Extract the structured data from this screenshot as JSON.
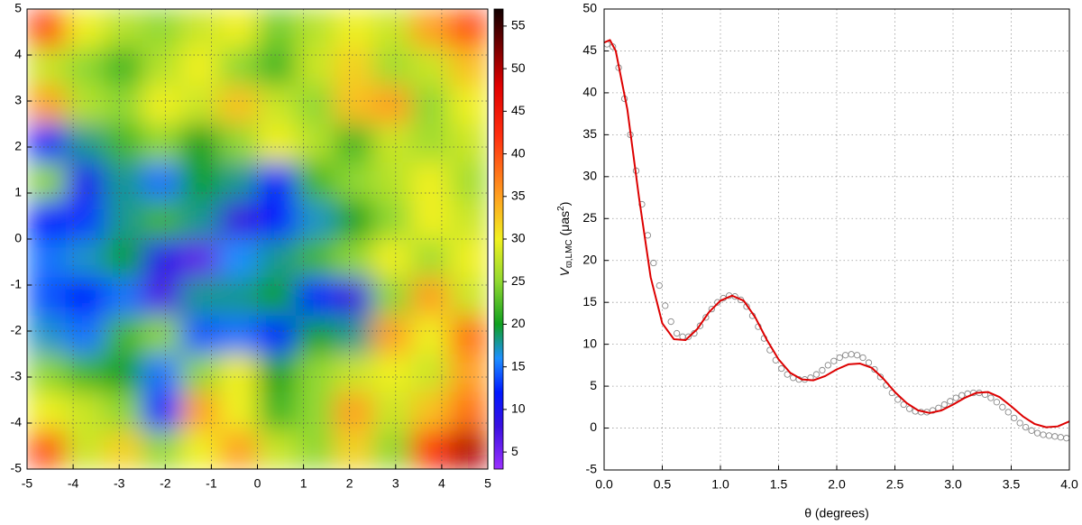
{
  "chart_data": [
    {
      "type": "heatmap",
      "xlim": [
        -5,
        5
      ],
      "ylim": [
        -5,
        5
      ],
      "xticks": [
        -5,
        -4,
        -3,
        -2,
        -1,
        0,
        1,
        2,
        3,
        4,
        5
      ],
      "yticks": [
        -5,
        -4,
        -3,
        -2,
        -1,
        0,
        1,
        2,
        3,
        4,
        5
      ],
      "grid": true,
      "zlim": [
        3,
        57
      ],
      "zticks": [
        5,
        10,
        15,
        20,
        25,
        30,
        35,
        40,
        45,
        50,
        55
      ],
      "colorscale": [
        [
          3,
          "#9b30ff"
        ],
        [
          8,
          "#3a10e0"
        ],
        [
          12,
          "#0018ff"
        ],
        [
          16,
          "#1e90ff"
        ],
        [
          20,
          "#10a020"
        ],
        [
          25,
          "#90d830"
        ],
        [
          30,
          "#f0f020"
        ],
        [
          35,
          "#ffa020"
        ],
        [
          42,
          "#ff3010"
        ],
        [
          48,
          "#e00000"
        ],
        [
          57,
          "#100000"
        ]
      ],
      "z": [
        [
          40,
          30,
          27,
          25,
          28,
          30,
          24,
          27,
          30,
          28,
          35,
          40
        ],
        [
          28,
          25,
          22,
          27,
          30,
          25,
          22,
          28,
          32,
          26,
          28,
          33
        ],
        [
          35,
          27,
          25,
          30,
          28,
          33,
          28,
          25,
          33,
          35,
          25,
          30
        ],
        [
          12,
          18,
          22,
          25,
          20,
          25,
          30,
          27,
          22,
          28,
          26,
          28
        ],
        [
          25,
          10,
          18,
          15,
          20,
          18,
          12,
          22,
          25,
          27,
          30,
          26
        ],
        [
          12,
          13,
          18,
          22,
          18,
          8,
          12,
          17,
          20,
          25,
          30,
          28
        ],
        [
          15,
          17,
          20,
          9,
          6,
          16,
          18,
          22,
          25,
          30,
          26,
          30
        ],
        [
          14,
          12,
          15,
          7,
          18,
          18,
          20,
          12,
          8,
          25,
          35,
          28
        ],
        [
          17,
          15,
          22,
          25,
          14,
          15,
          12,
          20,
          18,
          35,
          30,
          38
        ],
        [
          25,
          22,
          20,
          15,
          25,
          30,
          20,
          25,
          28,
          30,
          28,
          35
        ],
        [
          30,
          28,
          25,
          12,
          35,
          30,
          22,
          25,
          35,
          28,
          33,
          38
        ],
        [
          40,
          28,
          32,
          25,
          30,
          35,
          28,
          25,
          32,
          25,
          42,
          50
        ]
      ]
    },
    {
      "type": "line",
      "xlabel": "θ (degrees)",
      "ylabel": {
        "main": "V",
        "sub": "ϖ,LMC",
        "unit": "(μas",
        "sup": "2",
        "end": ")"
      },
      "xlim": [
        0,
        4
      ],
      "ylim": [
        -5,
        50
      ],
      "xticks": [
        {
          "value": 0,
          "label": "0.0"
        },
        {
          "value": 0.5,
          "label": "0.5"
        },
        {
          "value": 1,
          "label": "1.0"
        },
        {
          "value": 1.5,
          "label": "1.5"
        },
        {
          "value": 2,
          "label": "2.0"
        },
        {
          "value": 2.5,
          "label": "2.5"
        },
        {
          "value": 3,
          "label": "3.0"
        },
        {
          "value": 3.5,
          "label": "3.5"
        },
        {
          "value": 4,
          "label": "4.0"
        }
      ],
      "yticks": [
        -5,
        0,
        5,
        10,
        15,
        20,
        25,
        30,
        35,
        40,
        45,
        50
      ],
      "grid": true,
      "series": [
        {
          "type": "scatter",
          "color": "#888888",
          "x": [
            0.025,
            0.075,
            0.125,
            0.175,
            0.225,
            0.275,
            0.325,
            0.375,
            0.425,
            0.475,
            0.525,
            0.575,
            0.625,
            0.675,
            0.725,
            0.775,
            0.825,
            0.875,
            0.925,
            0.975,
            1.025,
            1.075,
            1.125,
            1.175,
            1.225,
            1.275,
            1.325,
            1.375,
            1.425,
            1.475,
            1.525,
            1.575,
            1.625,
            1.675,
            1.725,
            1.775,
            1.825,
            1.875,
            1.925,
            1.975,
            2.025,
            2.075,
            2.125,
            2.175,
            2.225,
            2.275,
            2.325,
            2.375,
            2.425,
            2.475,
            2.525,
            2.575,
            2.625,
            2.675,
            2.725,
            2.775,
            2.825,
            2.875,
            2.925,
            2.975,
            3.025,
            3.075,
            3.125,
            3.175,
            3.225,
            3.275,
            3.325,
            3.375,
            3.425,
            3.475,
            3.525,
            3.575,
            3.625,
            3.675,
            3.725,
            3.775,
            3.825,
            3.875,
            3.925,
            3.975
          ],
          "values": [
            45.8,
            45.5,
            43,
            39.3,
            35,
            30.7,
            26.7,
            23,
            19.7,
            17,
            14.6,
            12.7,
            11.3,
            10.9,
            10.9,
            11.3,
            12.2,
            13.2,
            14.2,
            15,
            15.5,
            15.8,
            15.7,
            15.3,
            14.5,
            13.4,
            12.1,
            10.7,
            9.3,
            8.1,
            7.1,
            6.4,
            6.0,
            5.8,
            5.8,
            6.0,
            6.4,
            6.9,
            7.5,
            8.0,
            8.4,
            8.7,
            8.8,
            8.7,
            8.4,
            7.8,
            7.0,
            6.1,
            5.1,
            4.2,
            3.4,
            2.8,
            2.3,
            2.0,
            1.9,
            1.9,
            2.1,
            2.4,
            2.8,
            3.2,
            3.6,
            3.9,
            4.1,
            4.2,
            4.2,
            4.0,
            3.6,
            3.1,
            2.5,
            1.9,
            1.2,
            0.6,
            0.1,
            -0.3,
            -0.6,
            -0.8,
            -0.9,
            -1.0,
            -1.1,
            -1.2
          ]
        },
        {
          "type": "line",
          "color": "#dd0000",
          "x": [
            0,
            0.05,
            0.1,
            0.2,
            0.3,
            0.4,
            0.5,
            0.6,
            0.7,
            0.8,
            0.9,
            1.0,
            1.1,
            1.2,
            1.3,
            1.4,
            1.5,
            1.6,
            1.7,
            1.8,
            1.9,
            2.0,
            2.1,
            2.2,
            2.3,
            2.4,
            2.5,
            2.6,
            2.7,
            2.8,
            2.9,
            3.0,
            3.1,
            3.2,
            3.3,
            3.4,
            3.5,
            3.6,
            3.7,
            3.8,
            3.9,
            4.0
          ],
          "values": [
            46,
            46.3,
            45,
            38,
            27.5,
            18,
            12.5,
            10.6,
            10.5,
            11.8,
            13.8,
            15.2,
            15.8,
            15.2,
            13.2,
            10.5,
            8.2,
            6.6,
            5.8,
            5.7,
            6.2,
            7,
            7.6,
            7.7,
            7.2,
            5.9,
            4.3,
            3,
            2.1,
            1.8,
            2.1,
            2.8,
            3.6,
            4.2,
            4.3,
            3.7,
            2.6,
            1.4,
            0.5,
            0.1,
            0.2,
            0.8
          ]
        }
      ]
    }
  ]
}
